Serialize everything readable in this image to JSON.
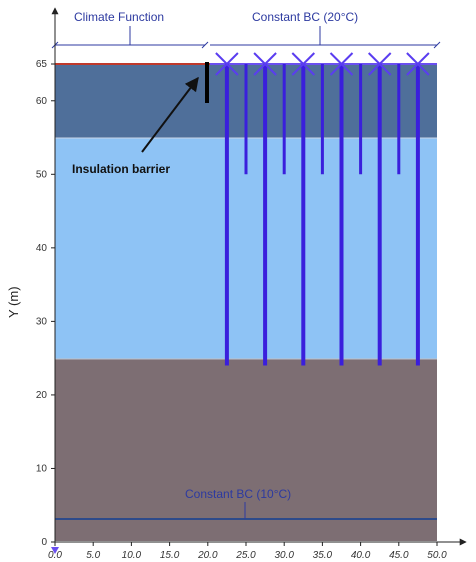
{
  "labels": {
    "climate_function": "Climate Function",
    "constant_bc_top": "Constant BC (20°C)",
    "insulation_barrier": "Insulation barrier",
    "constant_bc_bottom": "Constant BC (10°C)",
    "y_axis": "Y (m)"
  },
  "axis": {
    "x_ticks": [
      "0.0",
      "5.0",
      "10.0",
      "15.0",
      "20.0",
      "25.0",
      "30.0",
      "35.0",
      "40.0",
      "45.0",
      "50.0"
    ],
    "y_ticks": [
      "0",
      "10",
      "20",
      "30",
      "40",
      "50",
      "60",
      "65"
    ]
  },
  "layers": [
    {
      "name": "upper-layer",
      "y_top": 65,
      "y_bottom": 55,
      "color": "#4f6f9a"
    },
    {
      "name": "middle-layer",
      "y_top": 55,
      "y_bottom": 25,
      "color": "#8ec3f5"
    },
    {
      "name": "lower-layer",
      "y_top": 25,
      "y_bottom": 0,
      "color": "#7d6e73"
    }
  ],
  "colors": {
    "pipe": "#3a1fdc",
    "surface_line": "#c0392b",
    "annotation": "#2d3aa0",
    "boundary_line": "#2d4a8a"
  },
  "pipes": {
    "long_x": [
      22.5,
      27.5,
      32.5,
      37.5,
      42.5,
      47.5
    ],
    "short_x": [
      25,
      30,
      35,
      40,
      45
    ],
    "long_bottom_y": 24,
    "short_bottom_y": 50,
    "top_y": 65
  },
  "insulation_barrier": {
    "x": 20,
    "y_top": 66,
    "y_bottom": 60
  },
  "bottom_bc_y": 3
}
